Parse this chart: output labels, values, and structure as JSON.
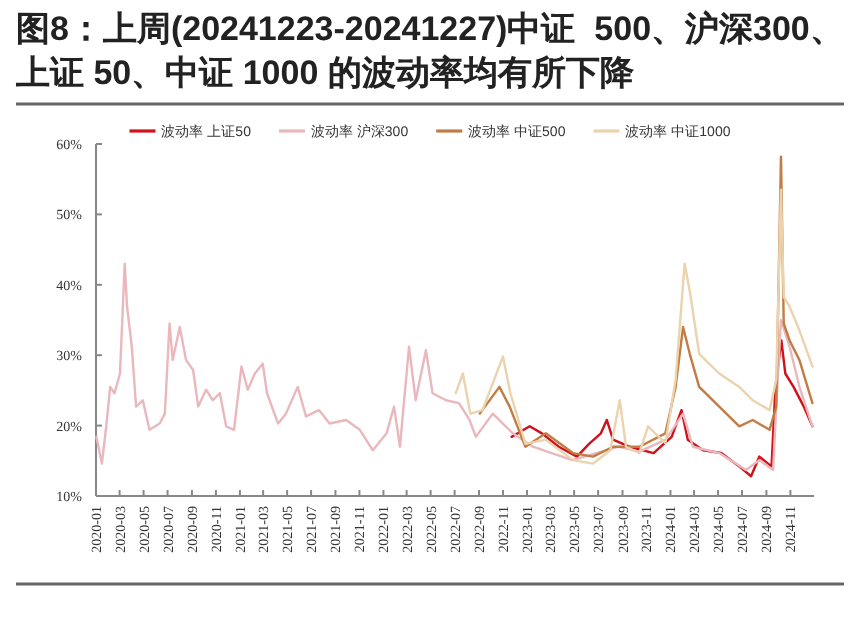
{
  "chart_data": {
    "type": "line",
    "title": "图8：上周(20241223-20241227)中证  500、沪深300、上证 50、中证 1000 的波动率均有所下降",
    "xlim": [
      "2020-01-01",
      "2024-12-31"
    ],
    "xticks": [
      "2020-01",
      "2020-03",
      "2020-05",
      "2020-07",
      "2020-09",
      "2020-11",
      "2021-01",
      "2021-03",
      "2021-05",
      "2021-07",
      "2021-09",
      "2021-11",
      "2022-01",
      "2022-03",
      "2022-05",
      "2022-07",
      "2022-09",
      "2022-11",
      "2023-01",
      "2023-03",
      "2023-05",
      "2023-07",
      "2023-09",
      "2023-11",
      "2024-01",
      "2024-03",
      "2024-05",
      "2024-07",
      "2024-09",
      "2024-11"
    ],
    "ylim": [
      10,
      60
    ],
    "yticks": [
      {
        "value": 10,
        "label": "10%"
      },
      {
        "value": 20,
        "label": "20%"
      },
      {
        "value": 30,
        "label": "30%"
      },
      {
        "value": 40,
        "label": "40%"
      },
      {
        "value": 50,
        "label": "50%"
      },
      {
        "value": 60,
        "label": "60%"
      }
    ],
    "legend": "top",
    "series": [
      {
        "name": "波动率 上证50",
        "color": "#d0101a",
        "x": [
          "2022-11-23",
          "2023-01-08",
          "2023-02-08",
          "2023-03-23",
          "2023-05-08",
          "2023-06-08",
          "2023-07-08",
          "2023-07-23",
          "2023-08-08",
          "2023-09-18",
          "2023-11-19",
          "2024-01-04",
          "2024-01-29",
          "2024-02-14",
          "2024-03-24",
          "2024-05-09",
          "2024-06-24",
          "2024-07-24",
          "2024-08-14",
          "2024-09-14",
          "2024-09-24",
          "2024-10-09",
          "2024-10-19",
          "2024-11-09",
          "2024-12-05",
          "2024-12-27"
        ],
        "values": [
          18.4,
          19.9,
          18.9,
          17.0,
          15.6,
          17.4,
          18.9,
          20.8,
          18.0,
          17.0,
          16.1,
          18.4,
          22.2,
          18.0,
          16.5,
          16.1,
          14.2,
          12.8,
          15.6,
          14.2,
          25.5,
          32.1,
          27.4,
          25.5,
          22.7,
          19.9
        ]
      },
      {
        "name": "波动率 沪深300",
        "color": "#eab8bc",
        "x": [
          "2020-01-02",
          "2020-01-16",
          "2020-01-27",
          "2020-02-06",
          "2020-02-17",
          "2020-03-02",
          "2020-03-14",
          "2020-03-20",
          "2020-04-01",
          "2020-04-12",
          "2020-04-29",
          "2020-05-16",
          "2020-06-11",
          "2020-06-24",
          "2020-07-06",
          "2020-07-14",
          "2020-08-01",
          "2020-08-17",
          "2020-09-04",
          "2020-09-17",
          "2020-10-07",
          "2020-10-24",
          "2020-11-11",
          "2020-11-27",
          "2020-12-17",
          "2021-01-05",
          "2021-01-21",
          "2021-02-08",
          "2021-02-28",
          "2021-03-11",
          "2021-04-08",
          "2021-04-28",
          "2021-05-28",
          "2021-06-18",
          "2021-07-21",
          "2021-08-17",
          "2021-09-28",
          "2021-11-02",
          "2021-12-05",
          "2022-01-09",
          "2022-01-28",
          "2022-02-12",
          "2022-03-07",
          "2022-03-24",
          "2022-04-19",
          "2022-05-06",
          "2022-06-09",
          "2022-07-12",
          "2022-08-08",
          "2022-08-24",
          "2022-10-06",
          "2022-11-26",
          "2023-01-16",
          "2023-04-26",
          "2023-08-23",
          "2023-10-14",
          "2023-12-20",
          "2024-02-02",
          "2024-02-27",
          "2024-05-04",
          "2024-07-11",
          "2024-08-14",
          "2024-09-18",
          "2024-09-26",
          "2024-10-08",
          "2024-10-30",
          "2024-11-24",
          "2024-12-27"
        ],
        "values": [
          18.4,
          14.6,
          19.9,
          25.5,
          24.6,
          27.4,
          43.0,
          36.9,
          31.2,
          22.7,
          23.6,
          19.4,
          20.3,
          21.7,
          34.5,
          29.3,
          34.0,
          29.3,
          27.9,
          22.7,
          25.1,
          23.6,
          24.6,
          19.9,
          19.4,
          28.4,
          25.1,
          27.4,
          28.8,
          24.6,
          20.3,
          21.7,
          25.5,
          21.3,
          22.2,
          20.3,
          20.8,
          19.4,
          16.5,
          18.9,
          22.7,
          17.0,
          31.2,
          23.6,
          30.7,
          24.6,
          23.6,
          23.2,
          20.8,
          18.4,
          21.7,
          18.9,
          17.0,
          15.1,
          17.0,
          16.3,
          18.0,
          21.7,
          17.0,
          16.1,
          13.7,
          15.1,
          13.7,
          22.7,
          35.0,
          31.2,
          25.5,
          19.9
        ]
      },
      {
        "name": "波动率 中证500",
        "color": "#c27c44",
        "x": [
          "2022-09-03",
          "2022-10-23",
          "2022-11-18",
          "2022-12-28",
          "2023-02-18",
          "2023-04-28",
          "2023-06-18",
          "2023-08-08",
          "2023-10-14",
          "2023-12-19",
          "2024-01-14",
          "2024-02-02",
          "2024-02-19",
          "2024-03-14",
          "2024-05-04",
          "2024-06-24",
          "2024-07-28",
          "2024-09-09",
          "2024-09-26",
          "2024-10-08",
          "2024-10-15",
          "2024-10-30",
          "2024-11-24",
          "2024-12-27"
        ],
        "values": [
          21.7,
          25.5,
          22.7,
          17.0,
          18.9,
          16.1,
          15.6,
          17.0,
          17.0,
          18.9,
          25.5,
          34.0,
          30.2,
          25.5,
          22.7,
          19.9,
          20.8,
          19.4,
          22.7,
          58.2,
          34.5,
          32.1,
          29.3,
          23.2
        ]
      },
      {
        "name": "波动率 中证1000",
        "color": "#ebd3ad",
        "x": [
          "2022-07-04",
          "2022-07-22",
          "2022-08-10",
          "2022-09-10",
          "2022-11-01",
          "2022-11-20",
          "2022-12-28",
          "2023-02-18",
          "2023-04-28",
          "2023-06-18",
          "2023-08-01",
          "2023-08-25",
          "2023-09-10",
          "2023-10-14",
          "2023-11-05",
          "2023-12-19",
          "2024-01-14",
          "2024-02-06",
          "2024-02-20",
          "2024-03-14",
          "2024-05-04",
          "2024-06-24",
          "2024-07-28",
          "2024-09-09",
          "2024-09-26",
          "2024-10-08",
          "2024-10-15",
          "2024-10-30",
          "2024-11-24",
          "2024-12-27"
        ],
        "values": [
          24.6,
          27.4,
          21.7,
          22.2,
          29.8,
          24.6,
          17.4,
          18.0,
          15.1,
          14.6,
          16.5,
          23.6,
          17.0,
          16.1,
          19.9,
          17.5,
          26.5,
          43.0,
          38.8,
          30.2,
          27.4,
          25.5,
          23.6,
          22.2,
          26.5,
          53.5,
          38.3,
          36.9,
          33.5,
          28.4
        ]
      }
    ]
  }
}
